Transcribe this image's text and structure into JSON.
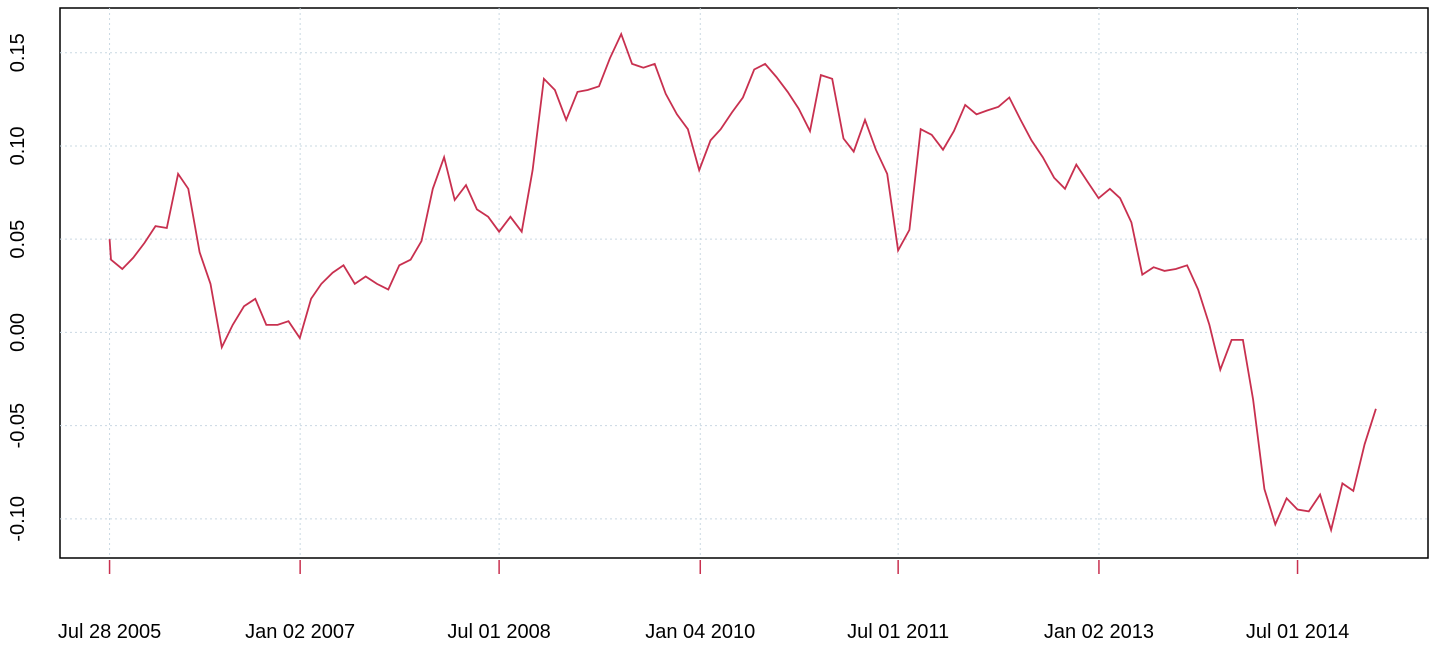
{
  "chart_data": {
    "type": "line",
    "x": [
      "2005-07-28",
      "2005-08-01",
      "2005-09-01",
      "2005-10-01",
      "2005-11-01",
      "2005-12-01",
      "2006-01-01",
      "2006-02-01",
      "2006-03-01",
      "2006-04-01",
      "2006-05-01",
      "2006-06-01",
      "2006-07-01",
      "2006-08-01",
      "2006-09-01",
      "2006-10-01",
      "2006-11-01",
      "2006-12-01",
      "2007-01-01",
      "2007-02-01",
      "2007-03-01",
      "2007-04-01",
      "2007-05-01",
      "2007-06-01",
      "2007-07-01",
      "2007-08-01",
      "2007-09-01",
      "2007-10-01",
      "2007-11-01",
      "2007-12-01",
      "2008-01-01",
      "2008-02-01",
      "2008-03-01",
      "2008-04-01",
      "2008-05-01",
      "2008-06-01",
      "2008-07-01",
      "2008-08-01",
      "2008-09-01",
      "2008-10-01",
      "2008-11-01",
      "2008-12-01",
      "2009-01-01",
      "2009-02-01",
      "2009-03-01",
      "2009-04-01",
      "2009-05-01",
      "2009-06-01",
      "2009-07-01",
      "2009-08-01",
      "2009-09-01",
      "2009-10-01",
      "2009-11-01",
      "2009-12-01",
      "2010-01-01",
      "2010-02-01",
      "2010-03-01",
      "2010-04-01",
      "2010-05-01",
      "2010-06-01",
      "2010-07-01",
      "2010-08-01",
      "2010-09-01",
      "2010-10-01",
      "2010-11-01",
      "2010-12-01",
      "2011-01-01",
      "2011-02-01",
      "2011-03-01",
      "2011-04-01",
      "2011-05-01",
      "2011-06-01",
      "2011-07-01",
      "2011-08-01",
      "2011-09-01",
      "2011-10-01",
      "2011-11-01",
      "2011-12-01",
      "2012-01-01",
      "2012-02-01",
      "2012-03-01",
      "2012-04-01",
      "2012-05-01",
      "2012-06-01",
      "2012-07-01",
      "2012-08-01",
      "2012-09-01",
      "2012-10-01",
      "2012-11-01",
      "2012-12-01",
      "2013-01-01",
      "2013-02-01",
      "2013-03-01",
      "2013-04-01",
      "2013-05-01",
      "2013-06-01",
      "2013-07-01",
      "2013-08-01",
      "2013-09-01",
      "2013-10-01",
      "2013-11-01",
      "2013-12-01",
      "2014-01-01",
      "2014-02-01",
      "2014-03-01",
      "2014-04-01",
      "2014-05-01",
      "2014-06-01",
      "2014-07-01",
      "2014-08-01",
      "2014-09-01",
      "2014-10-01",
      "2014-11-01",
      "2014-12-01",
      "2015-01-01",
      "2015-02-01"
    ],
    "series": [
      {
        "color": "#c8304f",
        "values": [
          0.05,
          0.039,
          0.034,
          0.04,
          0.048,
          0.057,
          0.056,
          0.085,
          0.077,
          0.043,
          0.026,
          -0.008,
          0.004,
          0.014,
          0.018,
          0.004,
          0.004,
          0.006,
          -0.003,
          0.018,
          0.026,
          0.032,
          0.036,
          0.026,
          0.03,
          0.026,
          0.023,
          0.036,
          0.039,
          0.049,
          0.077,
          0.094,
          0.071,
          0.079,
          0.066,
          0.062,
          0.054,
          0.062,
          0.054,
          0.087,
          0.136,
          0.13,
          0.114,
          0.129,
          0.13,
          0.132,
          0.147,
          0.16,
          0.144,
          0.142,
          0.144,
          0.128,
          0.117,
          0.109,
          0.087,
          0.103,
          0.109,
          0.118,
          0.126,
          0.141,
          0.144,
          0.137,
          0.129,
          0.12,
          0.108,
          0.138,
          0.136,
          0.104,
          0.097,
          0.114,
          0.098,
          0.085,
          0.044,
          0.055,
          0.109,
          0.106,
          0.098,
          0.108,
          0.122,
          0.117,
          0.119,
          0.121,
          0.126,
          0.114,
          0.103,
          0.094,
          0.083,
          0.077,
          0.09,
          0.081,
          0.072,
          0.077,
          0.072,
          0.059,
          0.031,
          0.035,
          0.033,
          0.034,
          0.036,
          0.023,
          0.004,
          -0.02,
          -0.004,
          -0.004,
          -0.036,
          -0.084,
          -0.103,
          -0.089,
          -0.095,
          -0.096,
          -0.087,
          -0.106,
          -0.081,
          -0.085,
          -0.06,
          -0.041
        ]
      }
    ],
    "xlim": [
      "2005-03-14",
      "2015-06-24"
    ],
    "xticks": [
      {
        "value": "2005-07-28",
        "label": "Jul 28 2005"
      },
      {
        "value": "2007-01-02",
        "label": "Jan 02 2007"
      },
      {
        "value": "2008-07-01",
        "label": "Jul 01 2008"
      },
      {
        "value": "2010-01-04",
        "label": "Jan 04 2010"
      },
      {
        "value": "2011-07-01",
        "label": "Jul 01 2011"
      },
      {
        "value": "2013-01-02",
        "label": "Jan 02 2013"
      },
      {
        "value": "2014-07-01",
        "label": "Jul 01 2014"
      }
    ],
    "ylim": [
      -0.121,
      0.174
    ],
    "yticks": [
      {
        "value": -0.1,
        "label": "-0.10"
      },
      -0.05,
      {
        "value": 0,
        "label": "0.00"
      },
      0.05,
      {
        "value": 0.1,
        "label": "0.10"
      },
      0.15
    ],
    "grid": true
  }
}
